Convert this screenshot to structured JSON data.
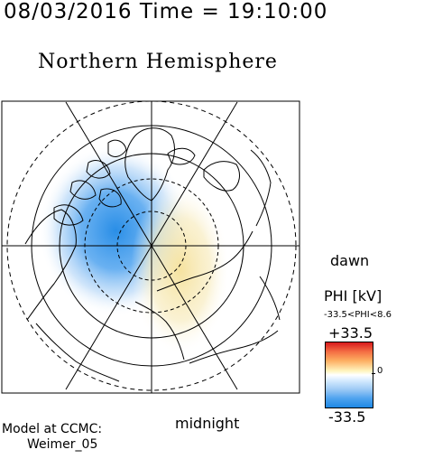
{
  "header": {
    "timestamp": "08/03/2016 Time = 19:10:00",
    "title": "Northern Hemisphere"
  },
  "labels": {
    "dawn": "dawn",
    "midnight": "midnight",
    "model_line1": "Model at CCMC:",
    "model_line2": "Weimer_05"
  },
  "colorbar": {
    "label": "PHI [kV]",
    "range_text": "-33.5<PHI<8.6",
    "max_label": "+33.5",
    "zero_label": "0",
    "min_label": "-33.5",
    "colors": {
      "positive": "#d7191c",
      "neutral": "#ffffff",
      "negative": "#1e88e5"
    }
  },
  "potential_pattern": {
    "negative_cell_color": "#3d9be9",
    "positive_cell_color": "#f5e6a0"
  }
}
